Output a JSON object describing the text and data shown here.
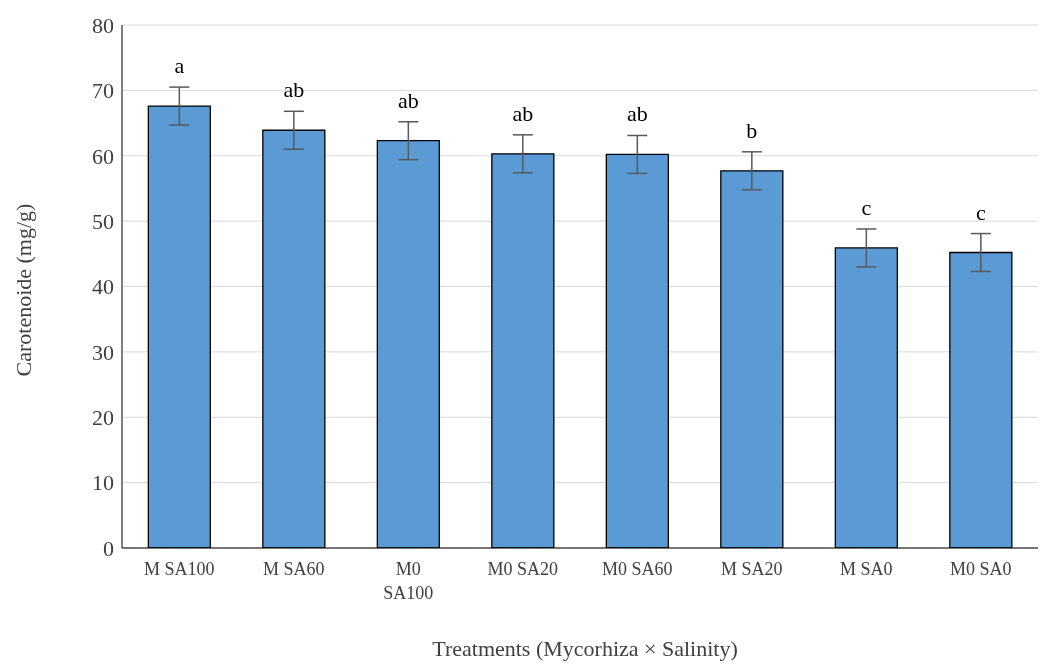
{
  "chart_data": {
    "type": "bar",
    "xlabel": "Treatments (Mycorhiza × Salinity)",
    "ylabel": "Carotenoide (mg/g)",
    "categories": [
      "M SA100",
      "M SA60",
      "M0 SA100",
      "M0 SA20",
      "M0 SA60",
      "M SA20",
      "M SA0",
      "M0 SA0"
    ],
    "values": [
      67.6,
      63.9,
      62.3,
      60.3,
      60.2,
      57.7,
      45.9,
      45.2
    ],
    "errors": [
      2.9,
      2.9,
      2.9,
      2.9,
      2.9,
      2.9,
      2.9,
      2.9
    ],
    "color": "#5b9bd5",
    "ylim": [
      0,
      80
    ],
    "yticks": [
      0,
      10,
      20,
      30,
      40,
      50,
      60,
      70,
      80
    ],
    "grid": "y",
    "legend": false,
    "annotations": [
      "a",
      "ab",
      "ab",
      "ab",
      "ab",
      "b",
      "c",
      "c"
    ]
  }
}
